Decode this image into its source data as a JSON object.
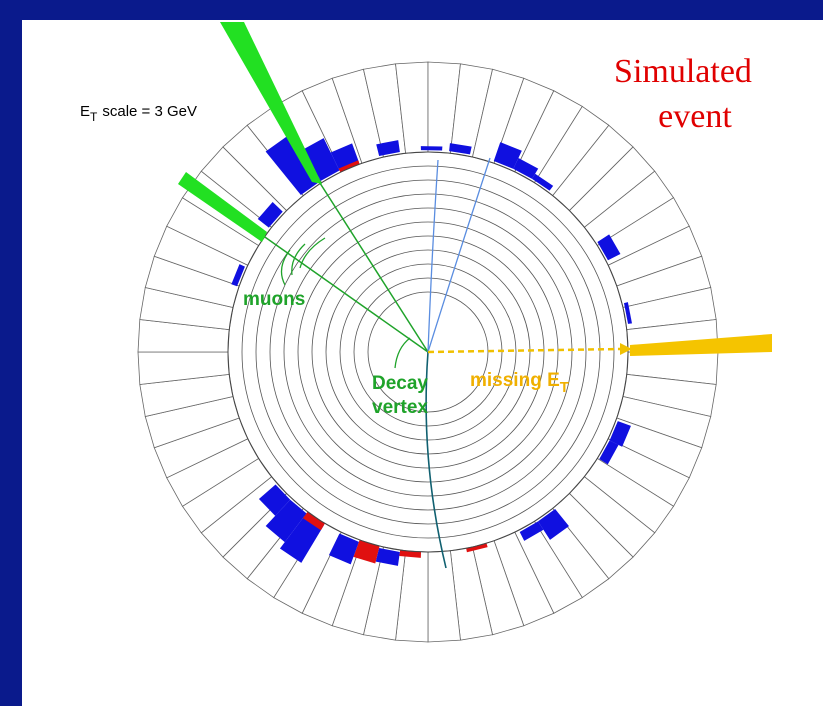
{
  "title": {
    "line1": "Simulated",
    "line2": "event"
  },
  "scale_label": {
    "symbol": "E",
    "subscript": "T",
    "text": "scale = 3 GeV"
  },
  "labels": {
    "muons": "muons",
    "decay_line1": "Decay",
    "decay_line2": "vertex",
    "missing": {
      "text": "missing E",
      "subscript": "T"
    }
  }
}
